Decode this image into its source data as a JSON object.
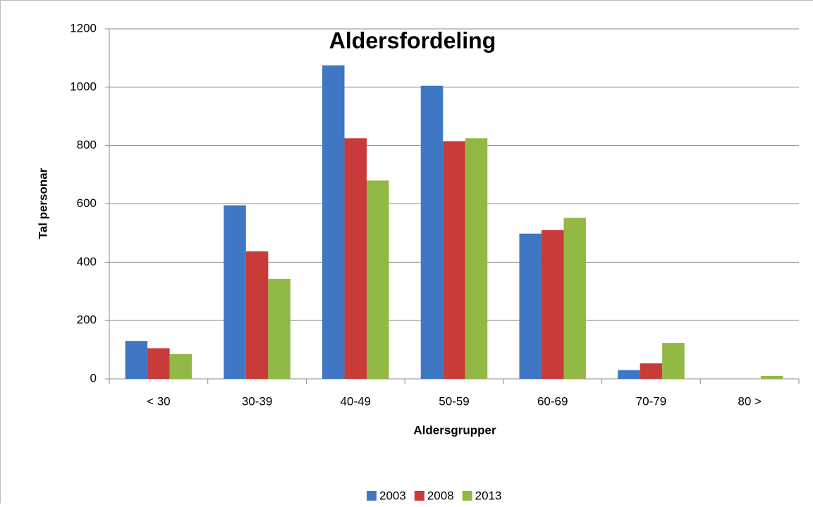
{
  "chart_data": {
    "type": "bar",
    "title": "Aldersfordeling",
    "xlabel": "Aldersgrupper",
    "ylabel": "Tal personar",
    "categories": [
      "< 30",
      "30-39",
      "40-49",
      "50-59",
      "60-69",
      "70-79",
      "80 >"
    ],
    "series": [
      {
        "name": "2003",
        "color": "#3f77c5",
        "values": [
          130,
          595,
          1075,
          1005,
          498,
          30,
          0
        ]
      },
      {
        "name": "2008",
        "color": "#c93b38",
        "values": [
          105,
          437,
          825,
          815,
          510,
          53,
          0
        ]
      },
      {
        "name": "2013",
        "color": "#92b944",
        "values": [
          85,
          343,
          680,
          825,
          552,
          123,
          10
        ]
      }
    ],
    "ylim": [
      0,
      1200
    ],
    "yticks": [
      0,
      200,
      400,
      600,
      800,
      1000,
      1200
    ],
    "grid": true,
    "legend": "bottom"
  }
}
